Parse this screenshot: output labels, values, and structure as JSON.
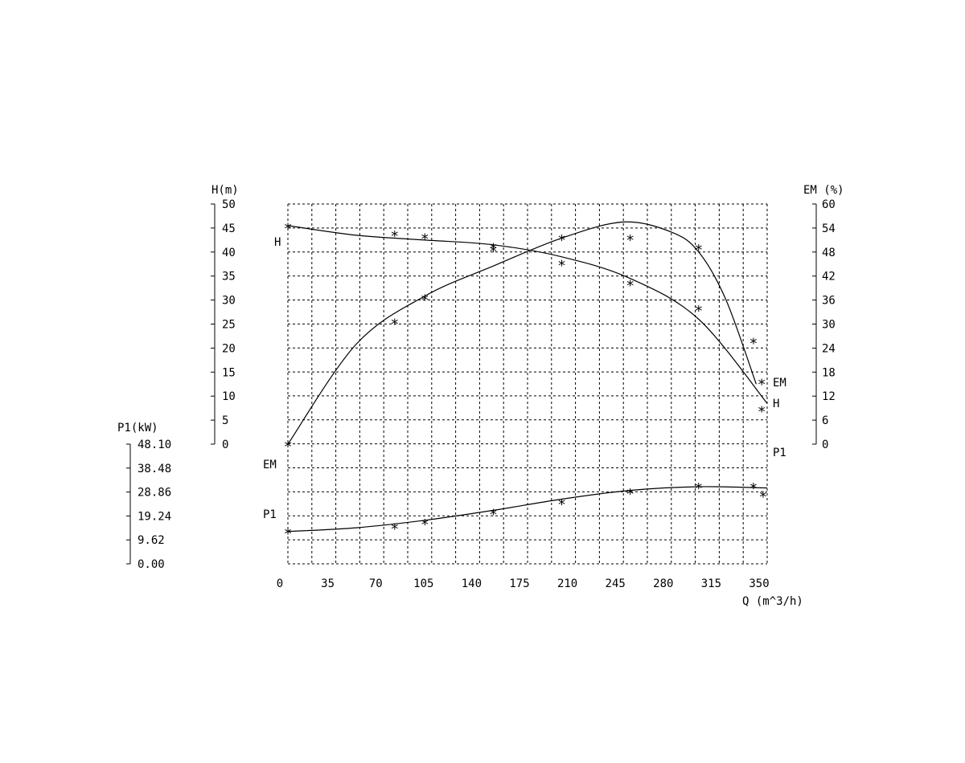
{
  "chart_data": {
    "type": "line",
    "x_axis": {
      "title": "Q (m^3/h)",
      "range": [
        0,
        350
      ],
      "ticks": [
        "0",
        "35",
        "70",
        "105",
        "140",
        "175",
        "210",
        "245",
        "280",
        "315",
        "350"
      ]
    },
    "y_axes": {
      "H": {
        "title": "H(m)",
        "range": [
          0,
          50
        ],
        "ticks": [
          "0",
          "5",
          "10",
          "15",
          "20",
          "25",
          "30",
          "35",
          "40",
          "45",
          "50"
        ]
      },
      "EM": {
        "title": "EM (%)",
        "range": [
          0,
          60
        ],
        "ticks": [
          "0",
          "6",
          "12",
          "18",
          "24",
          "30",
          "36",
          "42",
          "48",
          "54",
          "60"
        ]
      },
      "P1": {
        "title": "P1(kW)",
        "range": [
          0,
          48.1
        ],
        "ticks": [
          "0.00",
          "9.62",
          "19.24",
          "28.86",
          "38.48",
          "48.10"
        ]
      }
    },
    "grid": true,
    "series": [
      {
        "name": "H",
        "axis": "H",
        "curve": {
          "x": [
            0,
            50,
            100,
            150,
            200,
            250,
            300,
            350
          ],
          "y": [
            45.5,
            43.5,
            42.5,
            41.5,
            39,
            34.5,
            26,
            8.5
          ]
        },
        "markers": {
          "x": [
            0,
            78,
            100,
            150,
            200,
            250,
            300,
            340,
            346
          ],
          "y": [
            45.4,
            43.8,
            43.2,
            41.2,
            37.7,
            33.5,
            28.3,
            21.5,
            7.3
          ]
        }
      },
      {
        "name": "EM",
        "axis": "EM",
        "curve": {
          "x": [
            0,
            50,
            100,
            150,
            200,
            245,
            280,
            300,
            320,
            342
          ],
          "y": [
            0,
            25,
            37,
            44.5,
            51.5,
            55.5,
            53,
            48,
            36,
            15
          ]
        },
        "markers": {
          "x": [
            0,
            78,
            100,
            150,
            200,
            250,
            300,
            346
          ],
          "y": [
            0,
            30.6,
            36.6,
            48.8,
            51.6,
            51.6,
            49.2,
            15.6
          ]
        }
      },
      {
        "name": "P1",
        "axis": "P1",
        "curve": {
          "x": [
            0,
            50,
            100,
            150,
            200,
            250,
            300,
            350
          ],
          "y": [
            13.0,
            14.5,
            17.5,
            21.5,
            26.0,
            29.5,
            31.0,
            30.5
          ]
        },
        "markers": {
          "x": [
            0,
            78,
            100,
            150,
            200,
            250,
            300,
            340,
            347
          ],
          "y": [
            13.0,
            15.0,
            16.8,
            20.9,
            24.9,
            29.1,
            31.3,
            31.3,
            28.0
          ]
        }
      }
    ]
  }
}
